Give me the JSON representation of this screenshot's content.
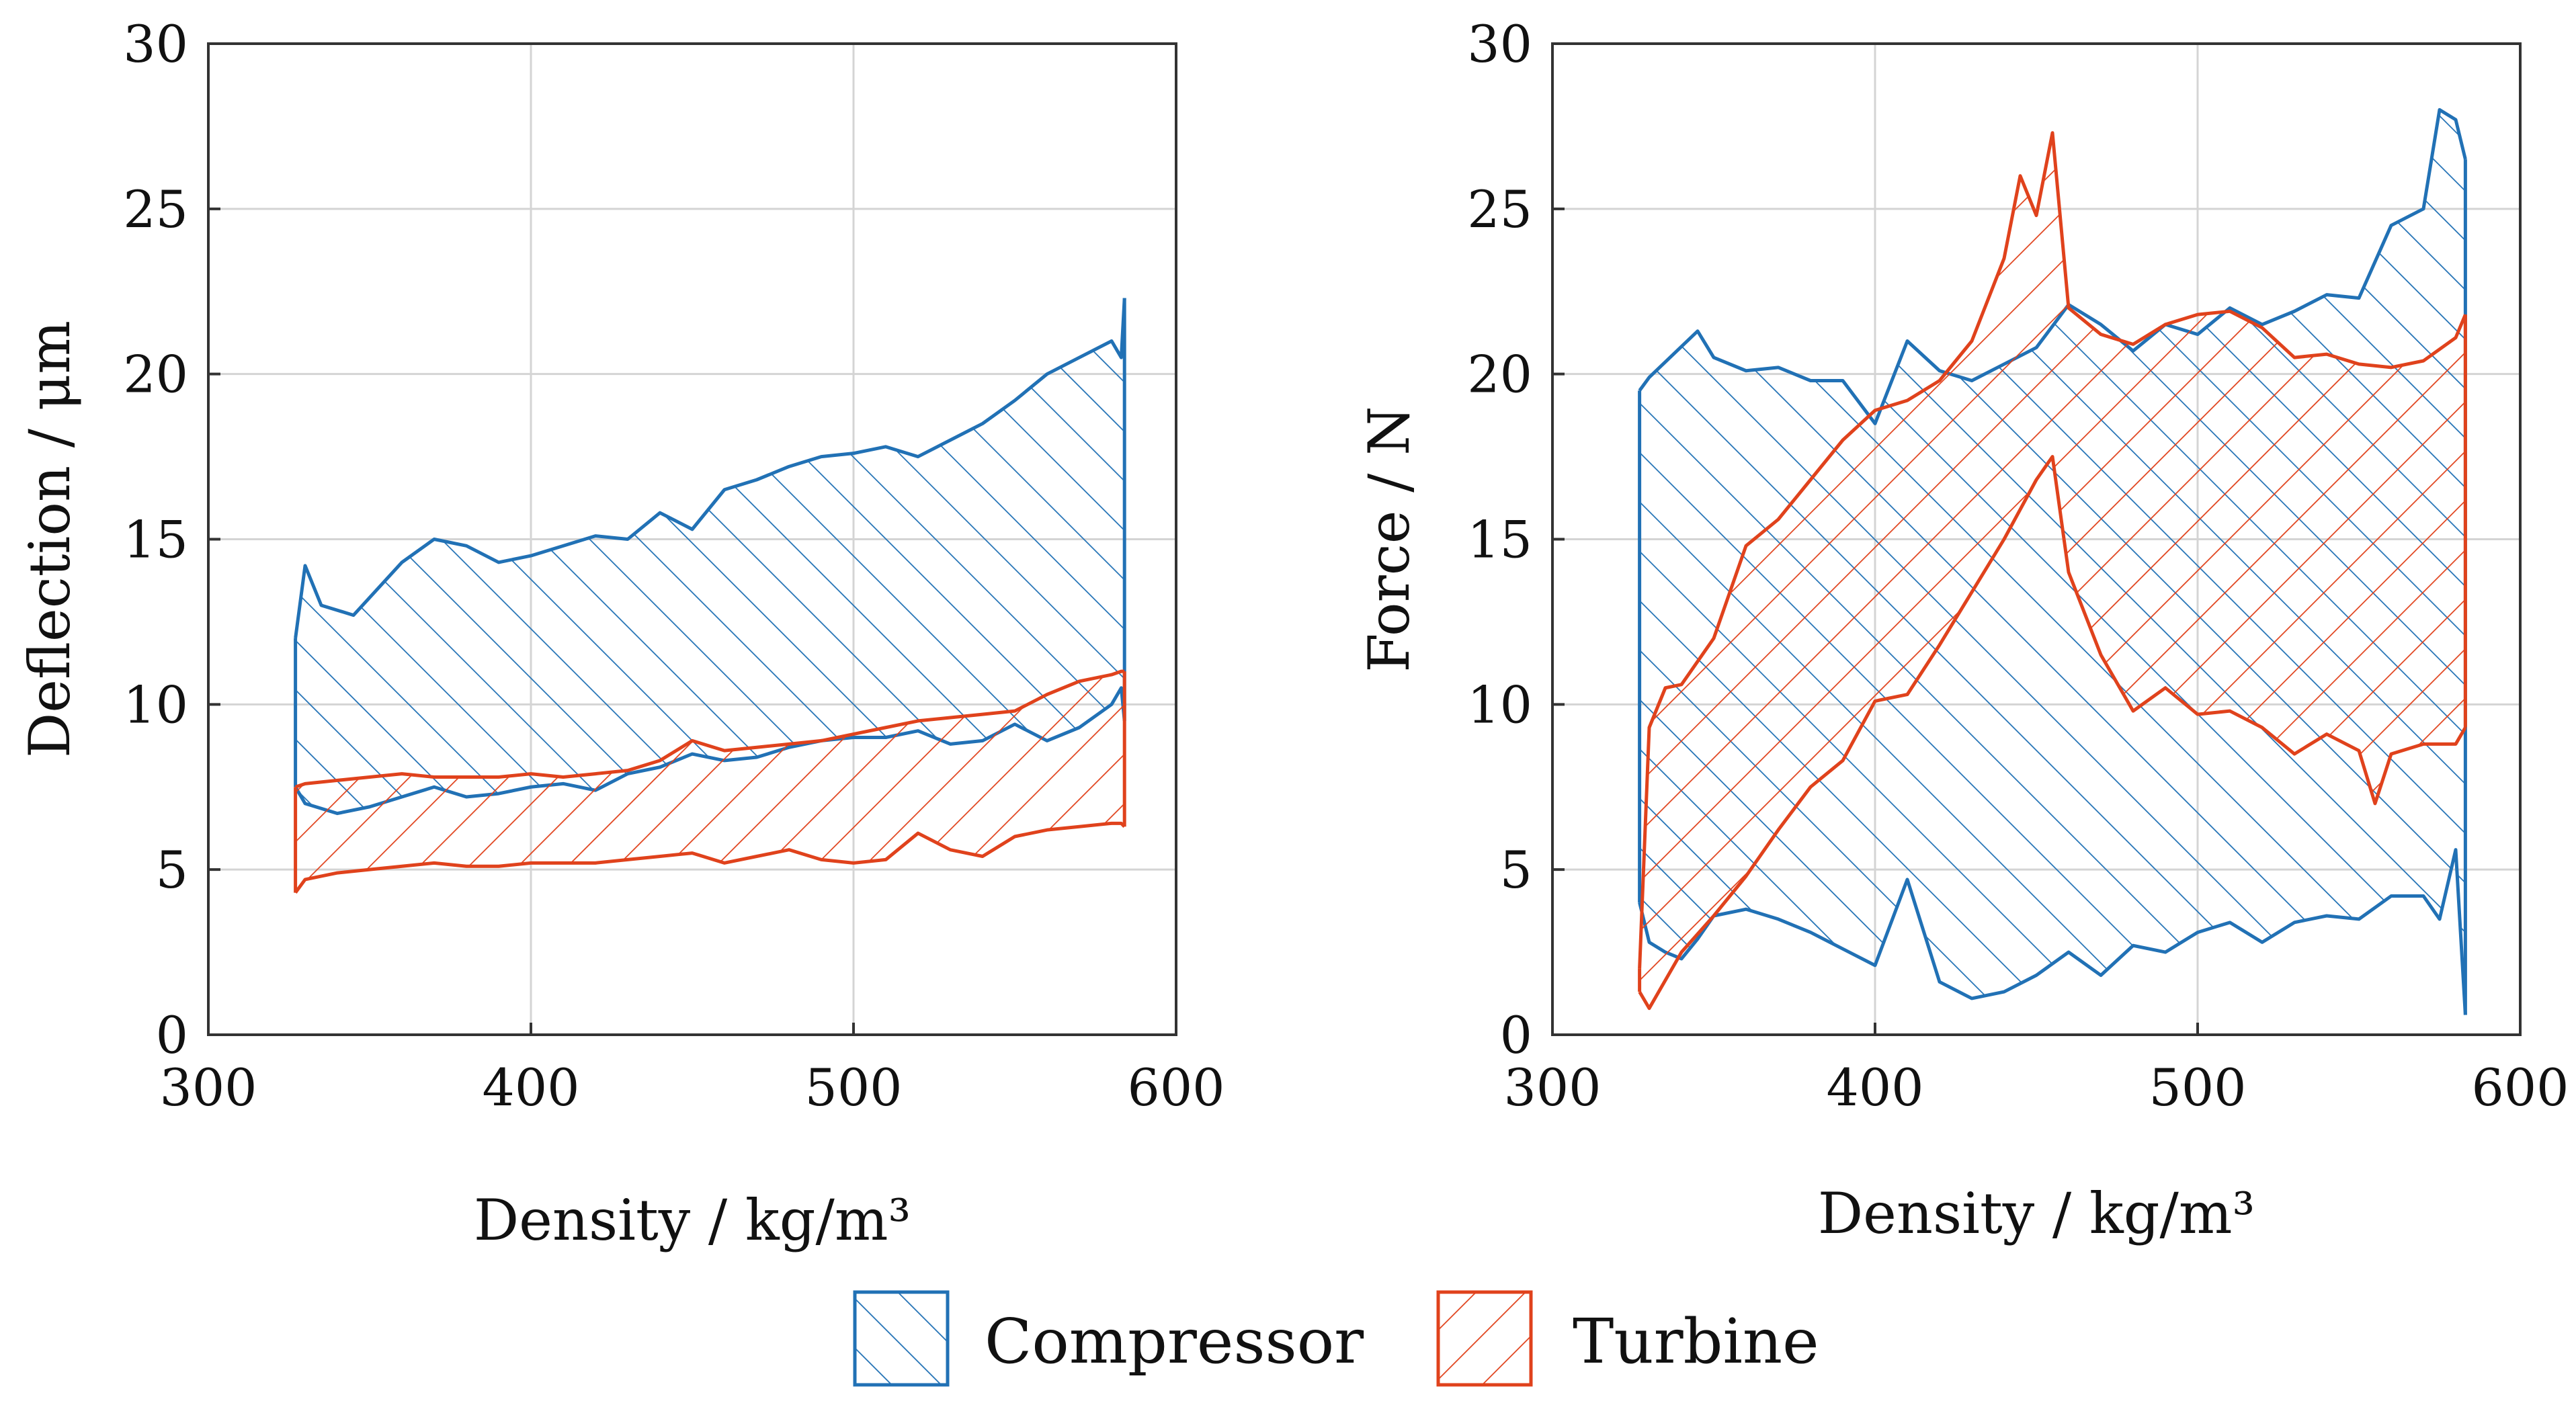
{
  "chart_data": [
    {
      "type": "area",
      "ylabel": "Deflection / μm",
      "xlabel": "Density / kg/m³",
      "xlim": [
        300,
        600
      ],
      "ylim": [
        0,
        30
      ],
      "xticks": [
        300,
        400,
        500,
        600
      ],
      "yticks": [
        0,
        5,
        10,
        15,
        20,
        25,
        30
      ],
      "xtick_labels": [
        "300",
        "400",
        "500",
        "600"
      ],
      "ytick_labels": [
        "0",
        "5",
        "10",
        "15",
        "20",
        "25",
        "30"
      ],
      "grid": true,
      "series": [
        {
          "name": "Compressor",
          "hatch": "forward-diagonal",
          "upper": {
            "x": [
              327,
              330,
              335,
              345,
              360,
              370,
              380,
              390,
              400,
              410,
              420,
              430,
              440,
              450,
              460,
              470,
              480,
              490,
              500,
              510,
              520,
              530,
              540,
              550,
              560,
              570,
              580,
              583,
              584
            ],
            "y": [
              12,
              14.2,
              13,
              12.7,
              14.3,
              15,
              14.8,
              14.3,
              14.5,
              14.8,
              15.1,
              15,
              15.8,
              15.3,
              16.5,
              16.8,
              17.2,
              17.5,
              17.6,
              17.8,
              17.5,
              18,
              18.5,
              19.2,
              20,
              20.5,
              21,
              20.5,
              22.3
            ]
          },
          "lower": {
            "x": [
              327,
              330,
              340,
              350,
              360,
              370,
              380,
              390,
              400,
              410,
              420,
              430,
              440,
              450,
              460,
              470,
              480,
              490,
              500,
              510,
              520,
              530,
              540,
              550,
              560,
              570,
              580,
              583,
              584
            ],
            "y": [
              7.5,
              7,
              6.7,
              6.9,
              7.2,
              7.5,
              7.2,
              7.3,
              7.5,
              7.6,
              7.4,
              7.9,
              8.1,
              8.5,
              8.3,
              8.4,
              8.7,
              8.9,
              9,
              9,
              9.2,
              8.8,
              8.9,
              9.4,
              8.9,
              9.3,
              10,
              10.5,
              9.5
            ]
          }
        },
        {
          "name": "Turbine",
          "hatch": "back-diagonal",
          "upper": {
            "x": [
              327,
              330,
              340,
              350,
              360,
              370,
              380,
              390,
              400,
              410,
              420,
              430,
              440,
              450,
              460,
              470,
              480,
              490,
              500,
              510,
              520,
              530,
              540,
              550,
              560,
              570,
              580,
              583,
              584
            ],
            "y": [
              7.5,
              7.6,
              7.7,
              7.8,
              7.9,
              7.8,
              7.8,
              7.8,
              7.9,
              7.8,
              7.9,
              8,
              8.3,
              8.9,
              8.6,
              8.7,
              8.8,
              8.9,
              9.1,
              9.3,
              9.5,
              9.6,
              9.7,
              9.8,
              10.3,
              10.7,
              10.9,
              11,
              11
            ]
          },
          "lower": {
            "x": [
              327,
              330,
              340,
              350,
              360,
              370,
              380,
              390,
              400,
              410,
              420,
              430,
              440,
              450,
              460,
              470,
              480,
              490,
              500,
              510,
              520,
              530,
              540,
              550,
              560,
              570,
              580,
              583,
              584
            ],
            "y": [
              4.3,
              4.7,
              4.9,
              5,
              5.1,
              5.2,
              5.1,
              5.1,
              5.2,
              5.2,
              5.2,
              5.3,
              5.4,
              5.5,
              5.2,
              5.4,
              5.6,
              5.3,
              5.2,
              5.3,
              6.1,
              5.6,
              5.4,
              6,
              6.2,
              6.3,
              6.4,
              6.4,
              6.3
            ]
          }
        }
      ]
    },
    {
      "type": "area",
      "ylabel": "Force / N",
      "xlabel": "Density / kg/m³",
      "xlim": [
        300,
        600
      ],
      "ylim": [
        0,
        30
      ],
      "xticks": [
        300,
        400,
        500,
        600
      ],
      "yticks": [
        0,
        5,
        10,
        15,
        20,
        25,
        30
      ],
      "xtick_labels": [
        "300",
        "400",
        "500",
        "600"
      ],
      "ytick_labels": [
        "0",
        "5",
        "10",
        "15",
        "20",
        "25",
        "30"
      ],
      "grid": true,
      "series": [
        {
          "name": "Compressor",
          "hatch": "forward-diagonal",
          "upper": {
            "x": [
              327,
              330,
              345,
              350,
              360,
              370,
              380,
              390,
              400,
              410,
              420,
              430,
              440,
              450,
              460,
              470,
              480,
              490,
              500,
              510,
              520,
              530,
              540,
              550,
              560,
              570,
              575,
              580,
              583
            ],
            "y": [
              19.5,
              19.9,
              21.3,
              20.5,
              20.1,
              20.2,
              19.8,
              19.8,
              18.5,
              21,
              20.1,
              19.8,
              20.3,
              20.8,
              22.1,
              21.5,
              20.7,
              21.5,
              21.2,
              22,
              21.5,
              21.9,
              22.4,
              22.3,
              24.5,
              25,
              28,
              27.7,
              26.5
            ]
          },
          "lower": {
            "x": [
              327,
              330,
              335,
              340,
              345,
              350,
              360,
              370,
              380,
              390,
              400,
              410,
              420,
              430,
              440,
              450,
              460,
              470,
              480,
              490,
              500,
              510,
              520,
              530,
              540,
              550,
              560,
              570,
              575,
              580,
              583
            ],
            "y": [
              4,
              2.8,
              2.5,
              2.3,
              2.9,
              3.6,
              3.8,
              3.5,
              3.1,
              2.6,
              2.1,
              4.7,
              1.6,
              1.1,
              1.3,
              1.8,
              2.5,
              1.8,
              2.7,
              2.5,
              3.1,
              3.4,
              2.8,
              3.4,
              3.6,
              3.5,
              4.2,
              4.2,
              3.5,
              5.6,
              0.6
            ]
          }
        },
        {
          "name": "Turbine",
          "hatch": "back-diagonal",
          "upper": {
            "x": [
              327,
              330,
              335,
              340,
              350,
              360,
              370,
              380,
              390,
              400,
              410,
              420,
              430,
              440,
              445,
              450,
              455,
              460,
              470,
              480,
              490,
              500,
              510,
              520,
              530,
              540,
              550,
              560,
              570,
              580,
              583
            ],
            "y": [
              2,
              9.3,
              10.5,
              10.6,
              12,
              14.8,
              15.6,
              16.8,
              18,
              18.9,
              19.2,
              19.8,
              21,
              23.5,
              26,
              24.8,
              27.3,
              22,
              21.2,
              20.9,
              21.5,
              21.8,
              21.9,
              21.4,
              20.5,
              20.6,
              20.3,
              20.2,
              20.4,
              21.1,
              21.8
            ]
          },
          "lower": {
            "x": [
              327,
              330,
              340,
              350,
              360,
              370,
              380,
              390,
              400,
              410,
              420,
              430,
              440,
              450,
              455,
              460,
              470,
              480,
              490,
              500,
              510,
              520,
              530,
              540,
              550,
              555,
              560,
              570,
              580,
              583
            ],
            "y": [
              1.3,
              0.8,
              2.5,
              3.6,
              4.8,
              6.2,
              7.5,
              8.3,
              10.1,
              10.3,
              11.8,
              13.4,
              15,
              16.8,
              17.5,
              14,
              11.5,
              9.8,
              10.5,
              9.7,
              9.8,
              9.3,
              8.5,
              9.1,
              8.6,
              7,
              8.5,
              8.8,
              8.8,
              9.3
            ]
          }
        }
      ]
    }
  ],
  "legend": {
    "items": [
      {
        "label": "Compressor",
        "color": "#2171b5"
      },
      {
        "label": "Turbine",
        "color": "#e0421c"
      }
    ]
  }
}
